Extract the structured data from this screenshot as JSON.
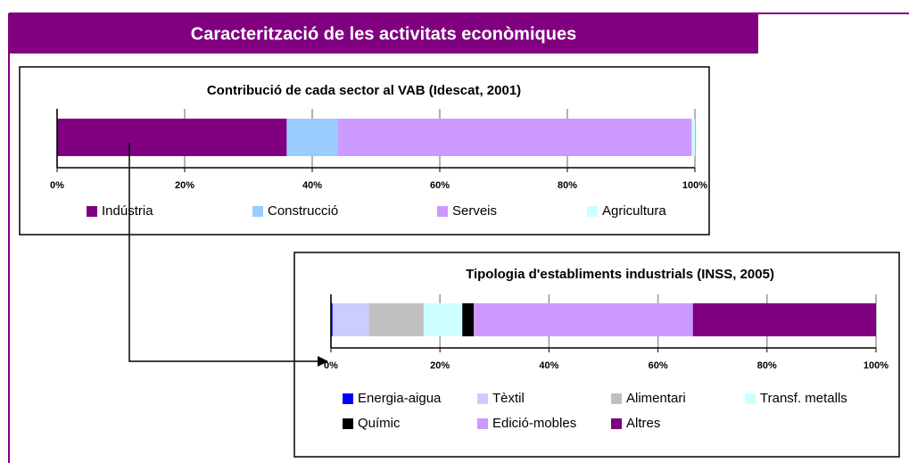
{
  "title": "Caracterització de les activitats econòmiques",
  "chart_data": [
    {
      "type": "bar",
      "stacked": true,
      "orientation": "horizontal",
      "title": "Contribució de cada sector al VAB (Idescat, 2001)",
      "xlim": [
        0,
        100
      ],
      "xticks": [
        {
          "value": 0,
          "label": "0%"
        },
        {
          "value": 20,
          "label": "20%"
        },
        {
          "value": 40,
          "label": "40%"
        },
        {
          "value": 60,
          "label": "60%"
        },
        {
          "value": 80,
          "label": "80%"
        },
        {
          "value": 100,
          "label": "100%"
        }
      ],
      "grid": true,
      "series": [
        {
          "name": "Indústria",
          "color": "#800080",
          "values": [
            36
          ]
        },
        {
          "name": "Construcció",
          "color": "#99ccff",
          "values": [
            8
          ]
        },
        {
          "name": "Serveis",
          "color": "#cc99ff",
          "values": [
            55.5
          ]
        },
        {
          "name": "Agricultura",
          "color": "#ccffff",
          "values": [
            0.5
          ]
        }
      ]
    },
    {
      "type": "bar",
      "stacked": true,
      "orientation": "horizontal",
      "title": "Tipologia d'establiments industrials (INSS, 2005)",
      "xlim": [
        0,
        100
      ],
      "xticks": [
        {
          "value": 0,
          "label": "0%"
        },
        {
          "value": 20,
          "label": "20%"
        },
        {
          "value": 40,
          "label": "40%"
        },
        {
          "value": 60,
          "label": "60%"
        },
        {
          "value": 80,
          "label": "80%"
        },
        {
          "value": 100,
          "label": "100%"
        }
      ],
      "grid": true,
      "series": [
        {
          "name": "Energia-aigua",
          "color": "#0000ff",
          "values": [
            0.3
          ]
        },
        {
          "name": "Tèxtil",
          "color": "#ccccff",
          "values": [
            6.6
          ]
        },
        {
          "name": "Alimentari",
          "color": "#c0c0c0",
          "values": [
            10.1
          ]
        },
        {
          "name": "Transf. metalls",
          "color": "#ccffff",
          "values": [
            7.1
          ]
        },
        {
          "name": "Químic",
          "color": "#000000",
          "values": [
            2.1
          ]
        },
        {
          "name": "Edició-mobles",
          "color": "#cc99ff",
          "values": [
            40.2
          ]
        },
        {
          "name": "Altres",
          "color": "#800080",
          "values": [
            33.6
          ]
        }
      ]
    }
  ]
}
